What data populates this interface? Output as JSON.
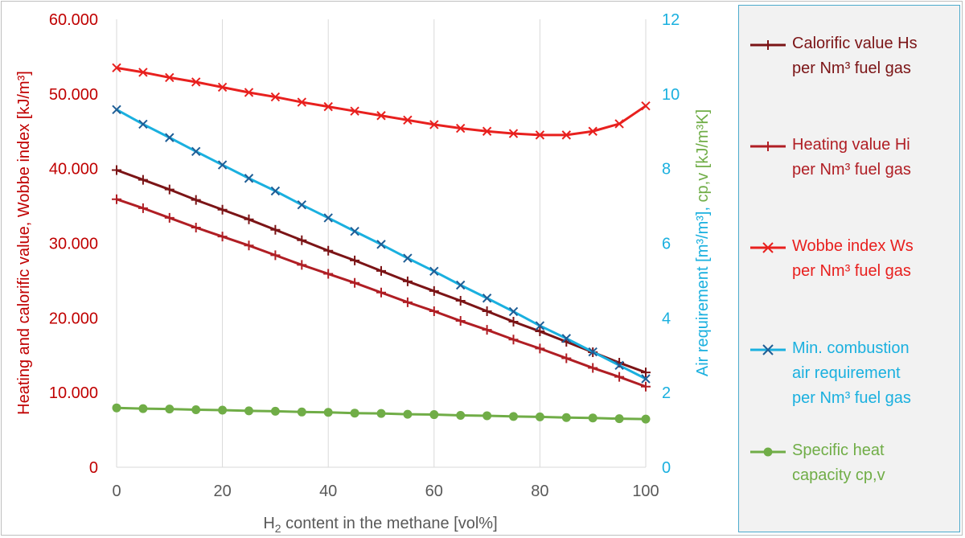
{
  "chart_data": {
    "type": "line",
    "xlabel_main": "H",
    "xlabel_sub": "2",
    "xlabel_rest": " content in the methane [vol%]",
    "ylabel_left": "Heating and calorific value, Wobbe index [kJ/m³]",
    "ylabel_right_air": "Air requirement [m³/m³], ",
    "ylabel_right_cp": "cp,v [kJ/m³K]",
    "xlim": [
      0,
      100
    ],
    "ylim_left": [
      0,
      60000
    ],
    "ylim_right": [
      0,
      12
    ],
    "x_ticks": [
      "0",
      "20",
      "40",
      "60",
      "80",
      "100"
    ],
    "y_left_ticks": [
      "0",
      "10.000",
      "20.000",
      "30.000",
      "40.000",
      "50.000",
      "60.000"
    ],
    "y_right_ticks": [
      "0",
      "2",
      "4",
      "6",
      "8",
      "10",
      "12"
    ],
    "grid": "vertical",
    "legend_position": "right",
    "x": [
      0,
      5,
      10,
      15,
      20,
      25,
      30,
      35,
      40,
      45,
      50,
      55,
      60,
      65,
      70,
      75,
      80,
      85,
      90,
      95,
      100
    ],
    "series": [
      {
        "name": "Calorific value Hs per Nm³ fuel gas",
        "axis": "left",
        "marker": "plus",
        "color": "#7b1416",
        "values": [
          39800,
          38500,
          37200,
          35800,
          34500,
          33200,
          31800,
          30400,
          29000,
          27700,
          26300,
          24900,
          23600,
          22300,
          20900,
          19500,
          18200,
          16800,
          15400,
          14000,
          12700
        ]
      },
      {
        "name": "Heating value Hi per Nm³ fuel gas",
        "axis": "left",
        "marker": "plus",
        "color": "#b01e24",
        "values": [
          35900,
          34700,
          33400,
          32100,
          30900,
          29700,
          28400,
          27100,
          25900,
          24700,
          23400,
          22100,
          20900,
          19600,
          18400,
          17100,
          15900,
          14600,
          13300,
          12100,
          10800
        ]
      },
      {
        "name": "Wobbe index Ws per Nm³ fuel gas",
        "axis": "left",
        "marker": "x",
        "color": "#e8201e",
        "values": [
          53500,
          52900,
          52200,
          51600,
          50900,
          50200,
          49600,
          48900,
          48300,
          47700,
          47100,
          46500,
          45900,
          45400,
          45000,
          44700,
          44500,
          44500,
          45000,
          46000,
          48400
        ]
      },
      {
        "name": "Min. combustion air requirement per Nm³ fuel gas",
        "axis": "right",
        "marker": "x",
        "color": "#1ab0df",
        "values": [
          9.58,
          9.19,
          8.83,
          8.46,
          8.1,
          7.74,
          7.4,
          7.03,
          6.68,
          6.32,
          5.97,
          5.6,
          5.25,
          4.88,
          4.53,
          4.17,
          3.79,
          3.45,
          3.09,
          2.73,
          2.37
        ]
      },
      {
        "name": "Specific heat capacity cp,v",
        "axis": "right",
        "marker": "circle",
        "color": "#70ad47",
        "values": [
          1.59,
          1.57,
          1.56,
          1.54,
          1.53,
          1.51,
          1.5,
          1.48,
          1.47,
          1.45,
          1.44,
          1.42,
          1.41,
          1.39,
          1.38,
          1.36,
          1.35,
          1.33,
          1.32,
          1.3,
          1.29
        ]
      }
    ],
    "legend_entries": [
      {
        "line1": "Calorific value Hs",
        "line2": "per Nm³ fuel gas"
      },
      {
        "line1": "Heating value Hi",
        "line2": "per Nm³ fuel gas"
      },
      {
        "line1": "Wobbe index Ws",
        "line2": "per Nm³ fuel gas"
      },
      {
        "line1": "Min. combustion",
        "line2": "air requirement",
        "line3": "per Nm³ fuel gas"
      },
      {
        "line1": "Specific heat",
        "line2": "capacity cp,v"
      }
    ],
    "colors": {
      "left_axis_text": "#c00000",
      "air_axis_text": "#1ab0df",
      "cp_axis_text": "#70ad47",
      "x_axis_text": "#595959",
      "grid": "#d9d9d9"
    }
  }
}
